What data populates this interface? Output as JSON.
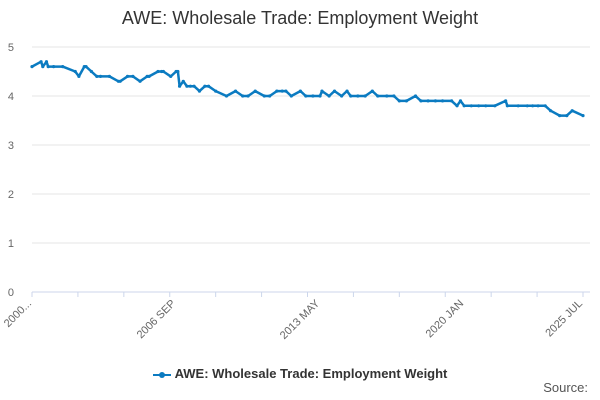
{
  "chart_data": {
    "type": "line",
    "title": "AWE: Wholesale Trade: Employment Weight",
    "xlabel": "",
    "ylabel": "",
    "ylim": [
      0,
      5
    ],
    "yticks": [
      "0",
      "1",
      "2",
      "3",
      "4",
      "5"
    ],
    "xticks": [
      {
        "label": "2000...",
        "t": 2000.0
      },
      {
        "label": "2006 SEP",
        "t": 2006.67
      },
      {
        "label": "2013 MAY",
        "t": 2013.33
      },
      {
        "label": "2020 JAN",
        "t": 2020.0
      },
      {
        "label": "2025 JUL",
        "t": 2025.5
      }
    ],
    "grid": true,
    "legend_position": "bottom",
    "color": "#0b7bc1",
    "series": [
      {
        "name": "AWE: Wholesale Trade: Employment Weight",
        "x": [
          "2000 JAN",
          "2000 JUN",
          "2000 JUL",
          "2000 SEP",
          "2000 OCT",
          "2001 JAN",
          "2001 JUN",
          "2002 JAN",
          "2002 MAR",
          "2002 JUN",
          "2002 JUL",
          "2002 OCT",
          "2003 JAN",
          "2003 MAR",
          "2003 AUG",
          "2004 JAN",
          "2004 FEB",
          "2004 JUN",
          "2004 SEP",
          "2005 JAN",
          "2005 MAY",
          "2005 JUN",
          "2005 NOV",
          "2006 JAN",
          "2006 FEB",
          "2006 JUN",
          "2006 SEP",
          "2006 OCT",
          "2006 NOV",
          "2007 JAN",
          "2007 MAR",
          "2007 MAY",
          "2007 JUL",
          "2007 OCT",
          "2008 JAN",
          "2008 MAR",
          "2008 JUL",
          "2009 JAN",
          "2009 JUN",
          "2009 OCT",
          "2010 JAN",
          "2010 MAY",
          "2010 OCT",
          "2011 JAN",
          "2011 MAY",
          "2011 AUG",
          "2011 OCT",
          "2012 JAN",
          "2012 JUN",
          "2012 SEP",
          "2013 JAN",
          "2013 MAY",
          "2013 JUN",
          "2013 OCT",
          "2014 JAN",
          "2014 MAY",
          "2014 AUG",
          "2014 OCT",
          "2015 FEB",
          "2015 JUN",
          "2015 OCT",
          "2016 JAN",
          "2016 JUN",
          "2016 OCT",
          "2017 JAN",
          "2017 MAY",
          "2017 OCT",
          "2018 JAN",
          "2018 MAY",
          "2018 SEP",
          "2019 JAN",
          "2019 JUN",
          "2019 SEP",
          "2019 NOV",
          "2020 JAN",
          "2020 MAY",
          "2020 SEP",
          "2021 JAN",
          "2021 JUN",
          "2021 DEC",
          "2022 JAN",
          "2022 JUL",
          "2022 DEC",
          "2023 MAR",
          "2023 JUN",
          "2023 OCT",
          "2024 JAN",
          "2024 JUN",
          "2024 OCT",
          "2025 JAN",
          "2025 JUL"
        ],
        "t": [
          2000.0,
          2000.42,
          2000.5,
          2000.67,
          2000.75,
          2001.0,
          2001.42,
          2002.0,
          2002.17,
          2002.42,
          2002.5,
          2002.75,
          2003.0,
          2003.17,
          2003.58,
          2004.0,
          2004.08,
          2004.42,
          2004.67,
          2005.0,
          2005.33,
          2005.42,
          2005.83,
          2006.0,
          2006.08,
          2006.42,
          2006.67,
          2006.75,
          2006.83,
          2007.0,
          2007.17,
          2007.33,
          2007.5,
          2007.75,
          2008.0,
          2008.17,
          2008.5,
          2009.0,
          2009.42,
          2009.75,
          2010.0,
          2010.33,
          2010.75,
          2011.0,
          2011.33,
          2011.58,
          2011.75,
          2012.0,
          2012.42,
          2012.67,
          2013.0,
          2013.33,
          2013.42,
          2013.75,
          2014.0,
          2014.33,
          2014.58,
          2014.75,
          2015.08,
          2015.42,
          2015.75,
          2016.0,
          2016.42,
          2016.75,
          2017.0,
          2017.33,
          2017.75,
          2018.0,
          2018.33,
          2018.67,
          2019.0,
          2019.42,
          2019.67,
          2019.83,
          2020.0,
          2020.33,
          2020.67,
          2021.0,
          2021.42,
          2021.92,
          2022.0,
          2022.5,
          2022.92,
          2023.17,
          2023.42,
          2023.75,
          2024.0,
          2024.42,
          2024.75,
          2025.0,
          2025.5
        ],
        "values": [
          4.6,
          4.7,
          4.6,
          4.7,
          4.6,
          4.6,
          4.6,
          4.5,
          4.4,
          4.6,
          4.6,
          4.5,
          4.4,
          4.4,
          4.4,
          4.3,
          4.3,
          4.4,
          4.4,
          4.3,
          4.4,
          4.4,
          4.5,
          4.5,
          4.5,
          4.4,
          4.5,
          4.5,
          4.2,
          4.3,
          4.2,
          4.2,
          4.2,
          4.1,
          4.2,
          4.2,
          4.1,
          4.0,
          4.1,
          4.0,
          4.0,
          4.1,
          4.0,
          4.0,
          4.1,
          4.1,
          4.1,
          4.0,
          4.1,
          4.0,
          4.0,
          4.0,
          4.1,
          4.0,
          4.1,
          4.0,
          4.1,
          4.0,
          4.0,
          4.0,
          4.1,
          4.0,
          4.0,
          4.0,
          3.9,
          3.9,
          4.0,
          3.9,
          3.9,
          3.9,
          3.9,
          3.9,
          3.8,
          3.9,
          3.8,
          3.8,
          3.8,
          3.8,
          3.8,
          3.9,
          3.8,
          3.8,
          3.8,
          3.8,
          3.8,
          3.8,
          3.7,
          3.6,
          3.6,
          3.7,
          3.6
        ]
      }
    ]
  },
  "legend": {
    "label": "AWE: Wholesale Trade: Employment Weight"
  },
  "source": {
    "label": "Source:"
  }
}
